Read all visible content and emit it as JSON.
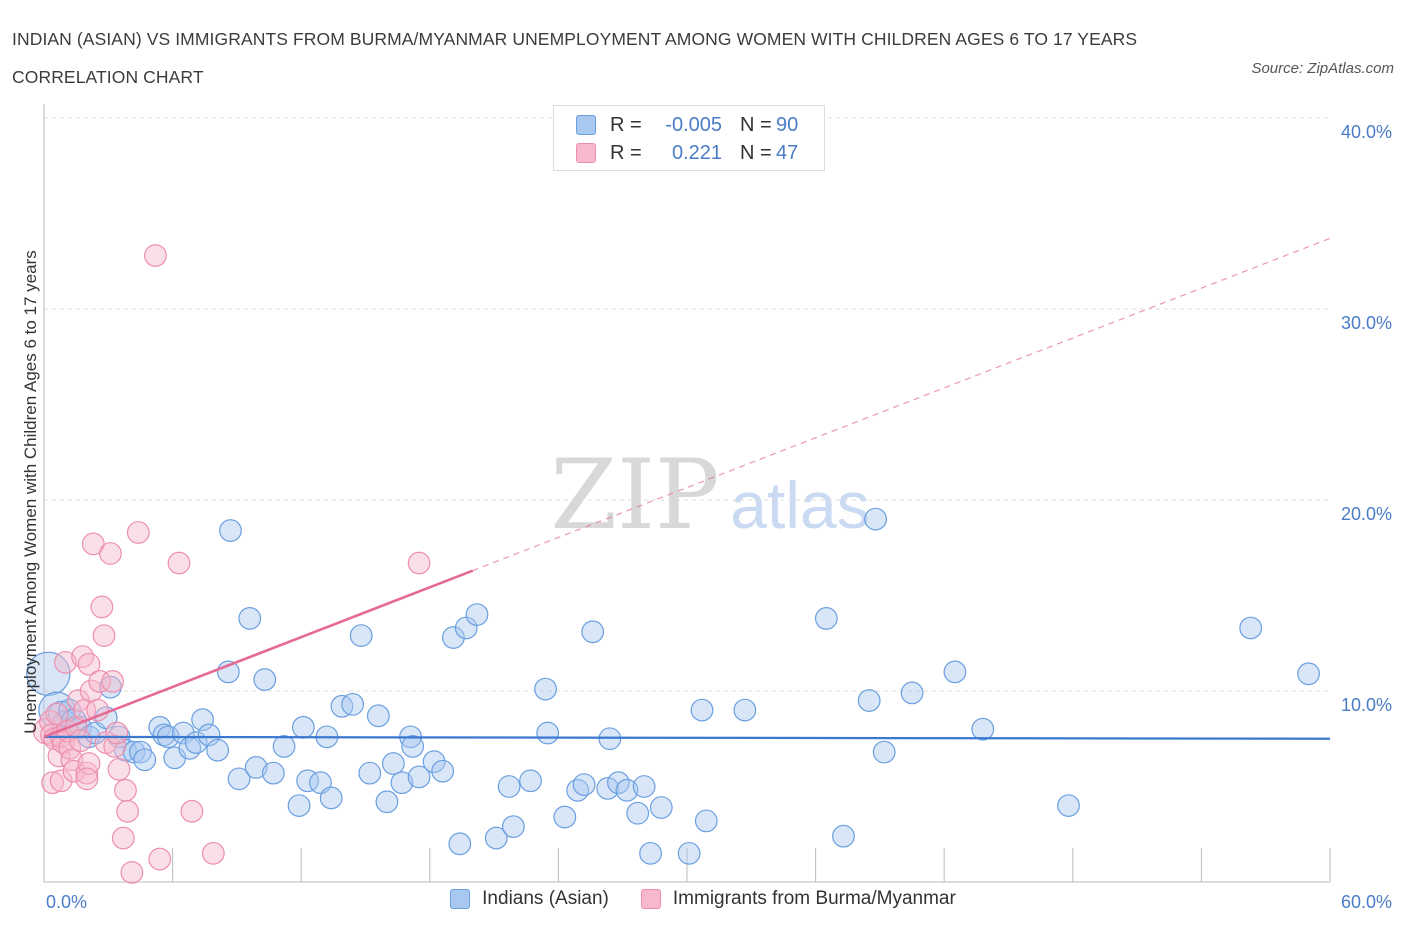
{
  "title": "INDIAN (ASIAN) VS IMMIGRANTS FROM BURMA/MYANMAR UNEMPLOYMENT AMONG WOMEN WITH CHILDREN AGES 6 TO 17 YEARS CORRELATION CHART",
  "source": "Source: ZipAtlas.com",
  "watermark": {
    "zip": "ZIP",
    "atlas": "atlas"
  },
  "legend": {
    "blue": {
      "r_label": "R =",
      "r_value": "-0.005",
      "n_label": "N =",
      "n_value": "90"
    },
    "pink": {
      "r_label": "R =",
      "r_value": "0.221",
      "n_label": "N =",
      "n_value": "47"
    }
  },
  "bottom_legend": {
    "blue": "Indians (Asian)",
    "pink": "Immigrants from Burma/Myanmar"
  },
  "colors": {
    "blue_fill": "#a9c8f0",
    "blue_stroke": "#6a9fe0",
    "blue_line": "#3b78d0",
    "pink_fill": "#f7b8cb",
    "pink_stroke": "#ec8fae",
    "pink_line": "#e56b95",
    "grid": "#dddddd",
    "tick_text": "#4a7cc7"
  },
  "chart_data": {
    "type": "scatter",
    "title": "Indian (Asian) vs Immigrants from Burma/Myanmar Unemployment Among Women with Children Ages 6 to 17 years Correlation Chart",
    "xlabel": "",
    "ylabel": "Unemployment Among Women with Children Ages 6 to 17 years",
    "xlim": [
      0,
      60
    ],
    "ylim": [
      0,
      40
    ],
    "x_tick_labels": [
      "0.0%",
      "60.0%"
    ],
    "y_tick_labels": [
      "10.0%",
      "20.0%",
      "30.0%",
      "40.0%"
    ],
    "y_ticks": [
      10,
      20,
      30,
      40
    ],
    "series": [
      {
        "name": "Indians (Asian)",
        "r": -0.005,
        "n": 90,
        "trend": {
          "x": [
            0,
            60
          ],
          "y": [
            7.6,
            7.5
          ],
          "style": "solid"
        },
        "points": [
          [
            0.2,
            10.9,
            2.4
          ],
          [
            0.6,
            9.0,
            2.0
          ],
          [
            0.8,
            8.8,
            1.4
          ],
          [
            1.0,
            8.3,
            1.4
          ],
          [
            1.2,
            9.0,
            1.2
          ],
          [
            1.4,
            8.4,
            1.4
          ],
          [
            1.7,
            8.1,
            1.2
          ],
          [
            2.1,
            7.6,
            1.2
          ],
          [
            2.4,
            7.8,
            1.2
          ],
          [
            2.9,
            8.6,
            1.2
          ],
          [
            3.1,
            10.2,
            1.2
          ],
          [
            3.5,
            7.6,
            1.2
          ],
          [
            3.8,
            6.9,
            1.2
          ],
          [
            4.2,
            6.8,
            1.2
          ],
          [
            4.5,
            6.8,
            1.2
          ],
          [
            4.7,
            6.4,
            1.2
          ],
          [
            5.4,
            8.1,
            1.2
          ],
          [
            5.6,
            7.7,
            1.2
          ],
          [
            5.8,
            7.6,
            1.2
          ],
          [
            6.1,
            6.5,
            1.2
          ],
          [
            6.5,
            7.8,
            1.2
          ],
          [
            6.8,
            7.0,
            1.2
          ],
          [
            7.1,
            7.3,
            1.2
          ],
          [
            7.4,
            8.5,
            1.2
          ],
          [
            7.7,
            7.7,
            1.2
          ],
          [
            8.1,
            6.9,
            1.2
          ],
          [
            8.6,
            11.0,
            1.2
          ],
          [
            8.7,
            18.4,
            1.2
          ],
          [
            9.1,
            5.4,
            1.2
          ],
          [
            9.6,
            13.8,
            1.2
          ],
          [
            9.9,
            6.0,
            1.2
          ],
          [
            10.3,
            10.6,
            1.2
          ],
          [
            10.7,
            5.7,
            1.2
          ],
          [
            11.2,
            7.1,
            1.2
          ],
          [
            11.9,
            4.0,
            1.2
          ],
          [
            12.1,
            8.1,
            1.2
          ],
          [
            12.3,
            5.3,
            1.2
          ],
          [
            12.9,
            5.2,
            1.2
          ],
          [
            13.2,
            7.6,
            1.2
          ],
          [
            13.4,
            4.4,
            1.2
          ],
          [
            13.9,
            9.2,
            1.2
          ],
          [
            14.4,
            9.3,
            1.2
          ],
          [
            14.8,
            12.9,
            1.2
          ],
          [
            15.2,
            5.7,
            1.2
          ],
          [
            15.6,
            8.7,
            1.2
          ],
          [
            16.0,
            4.2,
            1.2
          ],
          [
            16.3,
            6.2,
            1.2
          ],
          [
            16.7,
            5.2,
            1.2
          ],
          [
            17.1,
            7.6,
            1.2
          ],
          [
            17.2,
            7.1,
            1.2
          ],
          [
            17.5,
            5.5,
            1.2
          ],
          [
            18.2,
            6.3,
            1.2
          ],
          [
            18.6,
            5.8,
            1.2
          ],
          [
            19.1,
            12.8,
            1.2
          ],
          [
            19.4,
            2.0,
            1.2
          ],
          [
            19.7,
            13.3,
            1.2
          ],
          [
            20.2,
            14.0,
            1.2
          ],
          [
            21.1,
            2.3,
            1.2
          ],
          [
            21.7,
            5.0,
            1.2
          ],
          [
            21.9,
            2.9,
            1.2
          ],
          [
            22.7,
            5.3,
            1.2
          ],
          [
            23.4,
            10.1,
            1.2
          ],
          [
            23.5,
            7.8,
            1.2
          ],
          [
            24.3,
            3.4,
            1.2
          ],
          [
            24.9,
            4.8,
            1.2
          ],
          [
            25.2,
            5.1,
            1.2
          ],
          [
            25.6,
            13.1,
            1.2
          ],
          [
            26.3,
            4.9,
            1.2
          ],
          [
            26.4,
            7.5,
            1.2
          ],
          [
            26.8,
            5.2,
            1.2
          ],
          [
            27.2,
            4.8,
            1.2
          ],
          [
            27.7,
            3.6,
            1.2
          ],
          [
            28.0,
            5.0,
            1.2
          ],
          [
            28.3,
            1.5,
            1.2
          ],
          [
            28.8,
            3.9,
            1.2
          ],
          [
            30.1,
            1.5,
            1.2
          ],
          [
            30.7,
            9.0,
            1.2
          ],
          [
            30.9,
            3.2,
            1.2
          ],
          [
            32.7,
            9.0,
            1.2
          ],
          [
            36.5,
            13.8,
            1.2
          ],
          [
            37.3,
            2.4,
            1.2
          ],
          [
            38.5,
            9.5,
            1.2
          ],
          [
            38.8,
            19.0,
            1.2
          ],
          [
            39.2,
            6.8,
            1.2
          ],
          [
            40.5,
            9.9,
            1.2
          ],
          [
            42.5,
            11.0,
            1.2
          ],
          [
            43.8,
            8.0,
            1.2
          ],
          [
            47.8,
            4.0,
            1.2
          ],
          [
            56.3,
            13.3,
            1.2
          ],
          [
            59.0,
            10.9,
            1.2
          ]
        ]
      },
      {
        "name": "Immigrants from Burma/Myanmar",
        "r": 0.221,
        "n": 47,
        "trend": {
          "x": [
            0,
            20
          ],
          "y": [
            7.6,
            16.3
          ],
          "style": "solid",
          "extended": {
            "x": [
              20,
              60
            ],
            "y": [
              16.3,
              33.7
            ],
            "style": "dashed"
          }
        },
        "points": [
          [
            0.1,
            7.9,
            1.4
          ],
          [
            0.3,
            8.4,
            1.2
          ],
          [
            0.35,
            7.7,
            1.2
          ],
          [
            0.4,
            5.2,
            1.2
          ],
          [
            0.5,
            7.5,
            1.2
          ],
          [
            0.6,
            8.8,
            1.2
          ],
          [
            0.7,
            6.6,
            1.2
          ],
          [
            0.8,
            7.6,
            1.2
          ],
          [
            0.8,
            5.3,
            1.2
          ],
          [
            0.9,
            7.3,
            1.2
          ],
          [
            1.0,
            11.5,
            1.2
          ],
          [
            1.1,
            7.9,
            1.2
          ],
          [
            1.2,
            7.0,
            1.2
          ],
          [
            1.3,
            6.4,
            1.2
          ],
          [
            1.4,
            5.8,
            1.2
          ],
          [
            1.5,
            8.1,
            1.2
          ],
          [
            1.6,
            9.5,
            1.2
          ],
          [
            1.7,
            7.4,
            1.2
          ],
          [
            1.8,
            11.8,
            1.2
          ],
          [
            1.9,
            9.0,
            1.2
          ],
          [
            2.0,
            5.7,
            1.2
          ],
          [
            2.1,
            11.4,
            1.2
          ],
          [
            2.1,
            6.2,
            1.2
          ],
          [
            2.2,
            10.0,
            1.2
          ],
          [
            2.3,
            17.7,
            1.2
          ],
          [
            2.5,
            9.0,
            1.2
          ],
          [
            2.6,
            10.5,
            1.2
          ],
          [
            2.7,
            14.4,
            1.2
          ],
          [
            2.8,
            12.9,
            1.2
          ],
          [
            2.9,
            7.3,
            1.2
          ],
          [
            3.1,
            17.2,
            1.2
          ],
          [
            3.2,
            10.5,
            1.2
          ],
          [
            3.3,
            7.1,
            1.2
          ],
          [
            3.4,
            7.8,
            1.2
          ],
          [
            3.5,
            5.9,
            1.2
          ],
          [
            3.7,
            2.3,
            1.2
          ],
          [
            3.8,
            4.8,
            1.2
          ],
          [
            3.9,
            3.7,
            1.2
          ],
          [
            4.1,
            0.5,
            1.2
          ],
          [
            4.4,
            18.3,
            1.2
          ],
          [
            5.2,
            32.8,
            1.2
          ],
          [
            5.4,
            1.2,
            1.2
          ],
          [
            6.3,
            16.7,
            1.2
          ],
          [
            6.9,
            3.7,
            1.2
          ],
          [
            7.9,
            1.5,
            1.2
          ],
          [
            17.5,
            16.7,
            1.2
          ],
          [
            2.0,
            5.4,
            1.2
          ]
        ]
      }
    ]
  }
}
